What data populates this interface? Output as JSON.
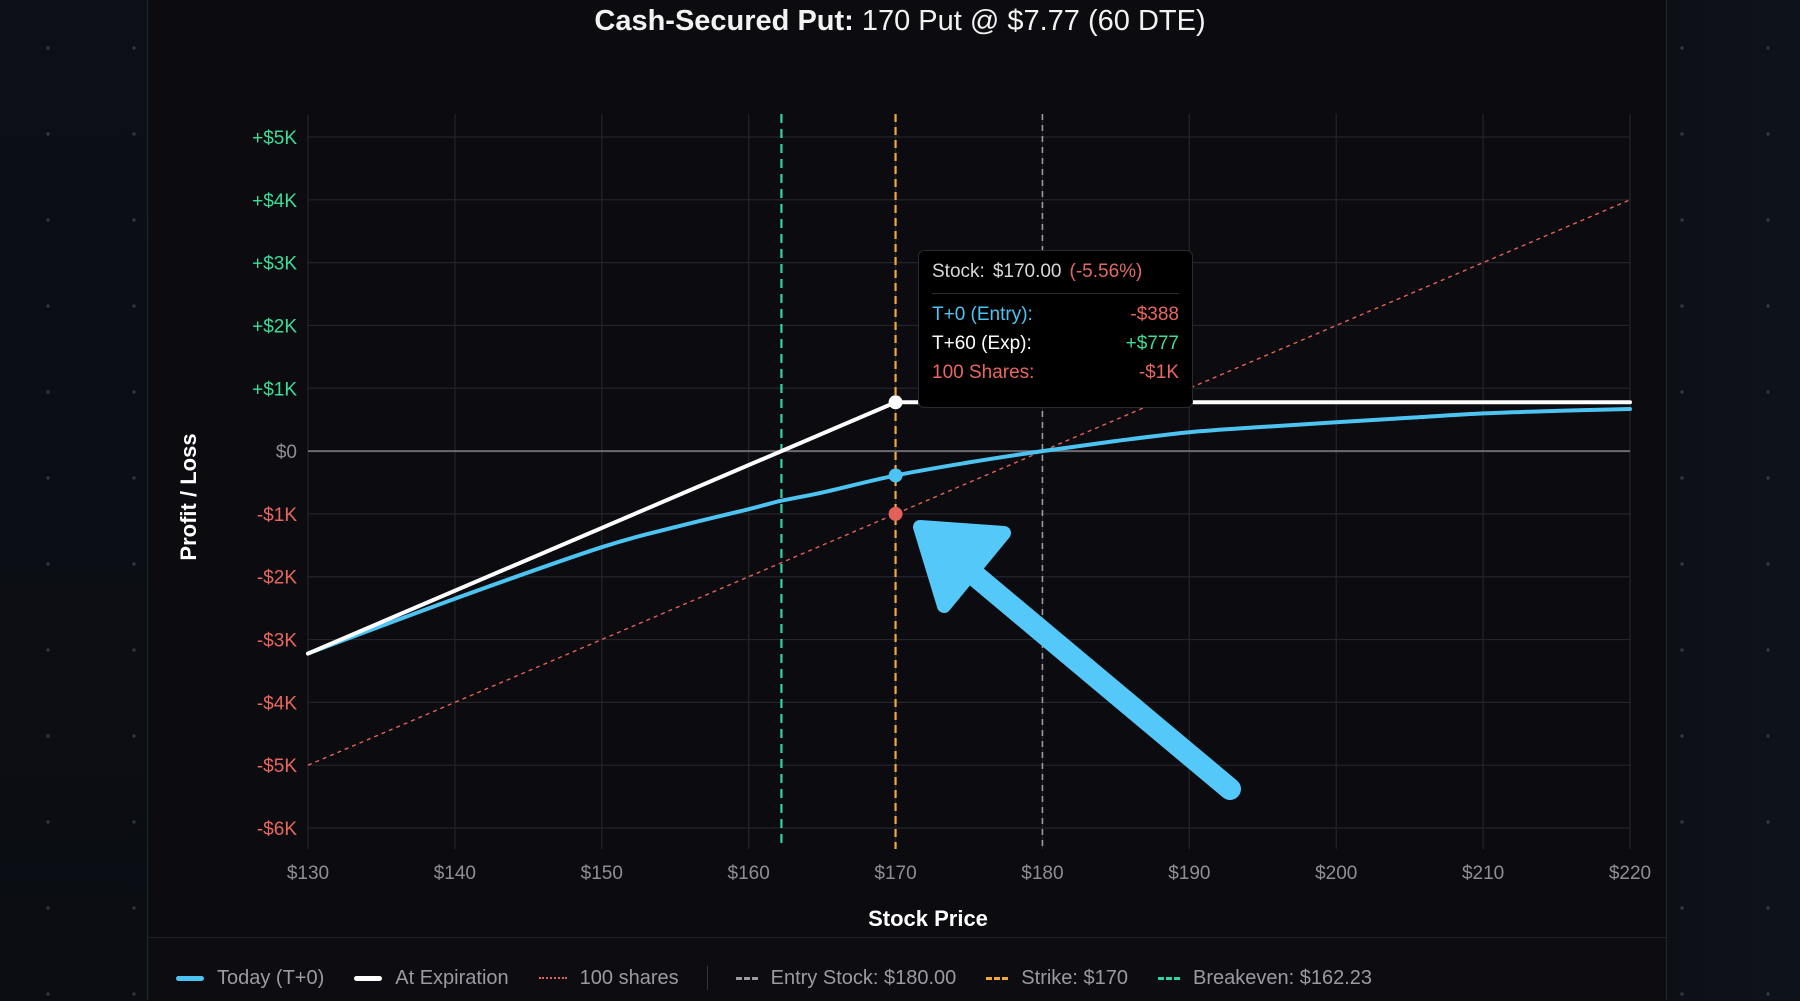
{
  "title": {
    "strategy": "Cash-Secured Put:",
    "detail": "170 Put @ $7.77 (60 DTE)"
  },
  "colors": {
    "t0": "#4cc3f0",
    "expiration": "#ffffff",
    "shares": "#e2625a",
    "entry": "#9a9aa2",
    "strike": "#f0a93a",
    "breakeven": "#2fd4a0",
    "positive": "#3ddc97",
    "negative": "#e8675f",
    "zero_label": "#8e8e95",
    "grid": "#24252b",
    "zero_line": "#6b6b72",
    "arrow": "#54c8f8"
  },
  "tooltip": {
    "stock_label": "Stock:",
    "stock_value": "$170.00",
    "stock_change": "(-5.56%)",
    "rows": [
      {
        "label": "T+0 (Entry):",
        "value": "-$388"
      },
      {
        "label": "T+60 (Exp):",
        "value": "+$777"
      },
      {
        "label": "100 Shares:",
        "value": "-$1K"
      }
    ]
  },
  "legend": {
    "items": [
      {
        "label": "Today (T+0)"
      },
      {
        "label": "At Expiration"
      },
      {
        "label": "100 shares"
      },
      {
        "label": "Entry Stock: $180.00"
      },
      {
        "label": "Strike: $170"
      },
      {
        "label": "Breakeven: $162.23"
      }
    ]
  },
  "chart_data": {
    "type": "line",
    "title": "Cash-Secured Put: 170 Put @ $7.77 (60 DTE)",
    "xlabel": "Stock Price",
    "ylabel": "Profit / Loss",
    "xlim": [
      130,
      220
    ],
    "ylim": [
      -6000,
      5000
    ],
    "grid": true,
    "legend_position": "bottom",
    "x_ticks": [
      130,
      140,
      150,
      160,
      170,
      180,
      190,
      200,
      210,
      220
    ],
    "x_tick_labels": [
      "$130",
      "$140",
      "$150",
      "$160",
      "$170",
      "$180",
      "$190",
      "$200",
      "$210",
      "$220"
    ],
    "y_ticks": [
      5000,
      4000,
      3000,
      2000,
      1000,
      0,
      -1000,
      -2000,
      -3000,
      -4000,
      -5000,
      -6000
    ],
    "y_tick_labels": [
      "+$5K",
      "+$4K",
      "+$3K",
      "+$2K",
      "+$1K",
      "$0",
      "-$1K",
      "-$2K",
      "-$3K",
      "-$4K",
      "-$5K",
      "-$6K"
    ],
    "series": [
      {
        "name": "Today (T+0)",
        "style": "solid",
        "x": [
          130,
          140,
          150,
          155,
          160,
          162.23,
          165,
          170,
          175,
          180,
          185,
          190,
          195,
          200,
          205,
          210,
          215,
          220
        ],
        "y": [
          -3223,
          -2350,
          -1530,
          -1210,
          -925,
          -790,
          -660,
          -388,
          -180,
          0,
          160,
          300,
          385,
          460,
          530,
          600,
          640,
          670
        ]
      },
      {
        "name": "At Expiration",
        "style": "solid",
        "x": [
          130,
          170,
          220
        ],
        "y": [
          -3223,
          777,
          777
        ]
      },
      {
        "name": "100 shares",
        "style": "dotted",
        "x": [
          130,
          220
        ],
        "y": [
          -5000,
          4000
        ]
      }
    ],
    "reference_lines": [
      {
        "name": "Entry Stock: $180.00",
        "x": 180,
        "style": "dashed"
      },
      {
        "name": "Strike: $170",
        "x": 170,
        "style": "dashed"
      },
      {
        "name": "Breakeven: $162.23",
        "x": 162.23,
        "style": "dashed"
      }
    ],
    "hover": {
      "x": 170,
      "points": [
        {
          "series": "At Expiration",
          "y": 777
        },
        {
          "series": "Today (T+0)",
          "y": -388
        },
        {
          "series": "100 shares",
          "y": -1000
        }
      ]
    },
    "annotations": [
      {
        "type": "arrow",
        "pointing_to": "hover points at $170",
        "color": "#54c8f8"
      }
    ]
  }
}
